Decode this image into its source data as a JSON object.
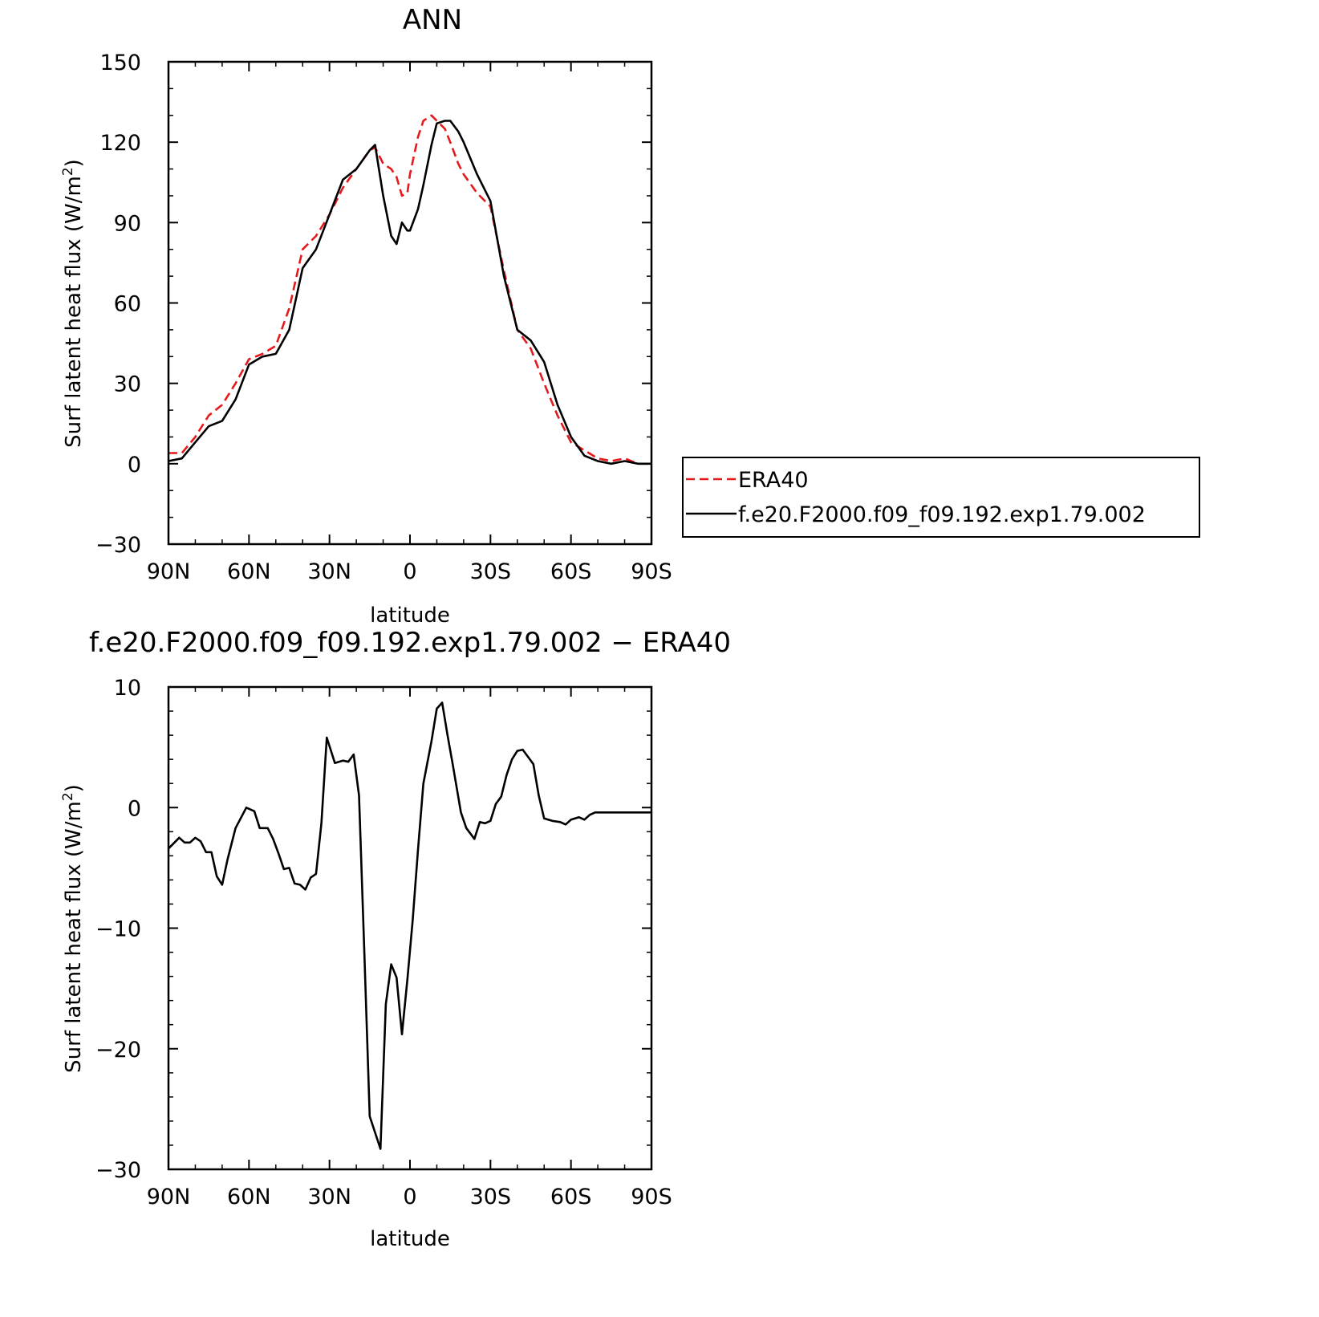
{
  "chart_data": [
    {
      "type": "line",
      "title": "ANN",
      "xlabel": "latitude",
      "ylabel": "Surf latent heat flux (W/m",
      "ylabel_sup": "2",
      "ylabel_end": ")",
      "xlim": [
        90,
        -90
      ],
      "ylim": [
        -30,
        150
      ],
      "xticks": [
        90,
        60,
        30,
        0,
        -30,
        -60,
        -90
      ],
      "xtick_labels": [
        "90N",
        "60N",
        "30N",
        "0",
        "30S",
        "60S",
        "90S"
      ],
      "yticks": [
        -30,
        0,
        30,
        60,
        90,
        120,
        150
      ],
      "ytick_labels": [
        "−30",
        "0",
        "30",
        "60",
        "90",
        "120",
        "150"
      ],
      "x": [
        90,
        85,
        80,
        75,
        70,
        65,
        60,
        55,
        50,
        45,
        40,
        35,
        30,
        25,
        20,
        15,
        13,
        10,
        7,
        5,
        3,
        1,
        0,
        -3,
        -5,
        -8,
        -10,
        -13,
        -15,
        -18,
        -20,
        -25,
        -30,
        -35,
        -40,
        -45,
        -50,
        -55,
        -60,
        -65,
        -70,
        -75,
        -80,
        -85,
        -90
      ],
      "series": [
        {
          "name": "ERA40",
          "color": "#e41a1c",
          "dash": "dashed",
          "values": [
            4,
            4,
            10,
            18,
            22,
            30,
            39,
            41,
            44,
            58,
            80,
            85,
            93,
            103,
            110,
            117,
            118,
            112,
            110,
            107,
            100,
            101,
            108,
            122,
            128,
            130,
            128,
            125,
            120,
            112,
            108,
            101,
            96,
            72,
            50,
            43,
            30,
            18,
            8,
            5,
            2,
            1,
            2,
            0,
            0
          ]
        },
        {
          "name": "f.e20.F2000.f09_f09.192.exp1.79.002",
          "color": "#000000",
          "dash": "solid",
          "values": [
            1,
            2,
            8,
            14,
            16,
            24,
            37,
            40,
            41,
            50,
            73,
            80,
            93,
            106,
            110,
            117,
            119,
            100,
            85,
            82,
            90,
            87,
            87,
            95,
            104,
            119,
            127,
            128,
            128,
            124,
            120,
            108,
            98,
            70,
            50,
            46,
            38,
            22,
            10,
            3,
            1,
            0,
            1,
            0,
            0
          ]
        }
      ],
      "legend": "right",
      "grid": false
    },
    {
      "type": "line",
      "title": "f.e20.F2000.f09_f09.192.exp1.79.002 − ERA40",
      "xlabel": "latitude",
      "ylabel": "Surf latent heat flux (W/m",
      "ylabel_sup": "2",
      "ylabel_end": ")",
      "xlim": [
        90,
        -90
      ],
      "ylim": [
        -30,
        10
      ],
      "xticks": [
        90,
        60,
        30,
        0,
        -30,
        -60,
        -90
      ],
      "xtick_labels": [
        "90N",
        "60N",
        "30N",
        "0",
        "30S",
        "60S",
        "90S"
      ],
      "yticks": [
        -30,
        -20,
        -10,
        0,
        10
      ],
      "ytick_labels": [
        "−30",
        "−20",
        "−10",
        "0",
        "10"
      ],
      "x": [
        90,
        86,
        84,
        82,
        80,
        78,
        76,
        74,
        72,
        70,
        68,
        65,
        61,
        58,
        56,
        53,
        51,
        49,
        47,
        45,
        43,
        41,
        39,
        37,
        35,
        33,
        31,
        28,
        25,
        23,
        21,
        19,
        17,
        15,
        11,
        9,
        7,
        5,
        3,
        1,
        -1,
        -3,
        -5,
        -8,
        -10,
        -12,
        -14,
        -16,
        -19,
        -21,
        -24,
        -26,
        -28,
        -30,
        -32,
        -34,
        -36,
        -38,
        -40,
        -42,
        -44,
        -46,
        -48,
        -50,
        -53,
        -56,
        -58,
        -60,
        -63,
        -65,
        -67,
        -69,
        -71,
        -73,
        -76,
        -78,
        -80,
        -82,
        -84,
        -86,
        -88,
        -90
      ],
      "series": [
        {
          "name": "",
          "color": "#000000",
          "dash": "solid",
          "values": [
            -3.4,
            -2.5,
            -2.9,
            -2.9,
            -2.5,
            -2.8,
            -3.7,
            -3.7,
            -5.7,
            -6.4,
            -4.3,
            -1.7,
            0.0,
            -0.3,
            -1.7,
            -1.7,
            -2.6,
            -3.8,
            -5.1,
            -5.0,
            -6.3,
            -6.4,
            -6.8,
            -5.8,
            -5.5,
            -1.3,
            5.8,
            3.7,
            3.9,
            3.8,
            4.4,
            1.0,
            -12.0,
            -25.6,
            -28.3,
            -16.3,
            -13.0,
            -14.1,
            -18.8,
            -14.3,
            -9.4,
            -3.5,
            2.0,
            5.5,
            8.2,
            8.7,
            6.0,
            3.5,
            -0.4,
            -1.7,
            -2.6,
            -1.2,
            -1.3,
            -1.1,
            0.3,
            0.9,
            2.7,
            4.0,
            4.7,
            4.8,
            4.2,
            3.6,
            1.0,
            -0.9,
            -1.1,
            -1.2,
            -1.4,
            -1.0,
            -0.8,
            -1.0,
            -0.6,
            -0.4,
            -0.4,
            -0.4,
            -0.4,
            -0.4,
            -0.4,
            -0.4,
            -0.4,
            -0.4,
            -0.4,
            -0.4
          ]
        }
      ],
      "grid": false
    }
  ]
}
